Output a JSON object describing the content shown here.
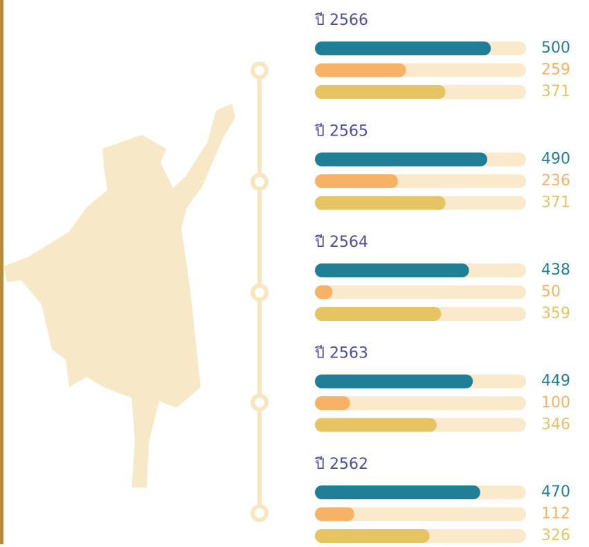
{
  "chart_data": {
    "type": "bar",
    "orientation": "horizontal",
    "categories": [
      "ปี 2566",
      "ปี 2565",
      "ปี 2564",
      "ปี 2563",
      "ปี 2562"
    ],
    "series": [
      {
        "color": "#1e7f96",
        "values": [
          500,
          490,
          438,
          449,
          470
        ]
      },
      {
        "color": "#f8b266",
        "values": [
          259,
          236,
          50,
          100,
          112
        ]
      },
      {
        "color": "#e6c462",
        "values": [
          371,
          371,
          359,
          346,
          326
        ]
      }
    ],
    "track_color": "#faeacb",
    "xlim": [
      0,
      600
    ]
  }
}
